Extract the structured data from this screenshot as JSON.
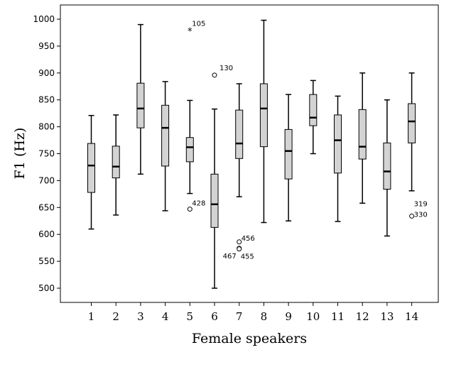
{
  "chart_data": {
    "type": "boxplot",
    "xlabel": "Female speakers",
    "ylabel": "F1 (Hz)",
    "ylim": [
      500,
      1000
    ],
    "yticks": [
      500,
      550,
      600,
      650,
      700,
      750,
      800,
      850,
      900,
      950,
      1000
    ],
    "grid": false,
    "colors": {
      "box_fill": "#d3d3d3",
      "stroke": "#000000",
      "background": "#ffffff"
    },
    "categories": [
      "1",
      "2",
      "3",
      "4",
      "5",
      "6",
      "7",
      "8",
      "9",
      "10",
      "11",
      "12",
      "13",
      "14"
    ],
    "boxes": [
      {
        "category": "1",
        "whisker_low": 610,
        "q1": 678,
        "median": 728,
        "q3": 769,
        "whisker_high": 821
      },
      {
        "category": "2",
        "whisker_low": 636,
        "q1": 705,
        "median": 726,
        "q3": 764,
        "whisker_high": 822
      },
      {
        "category": "3",
        "whisker_low": 712,
        "q1": 798,
        "median": 834,
        "q3": 881,
        "whisker_high": 990
      },
      {
        "category": "4",
        "whisker_low": 644,
        "q1": 727,
        "median": 798,
        "q3": 840,
        "whisker_high": 884
      },
      {
        "category": "5",
        "whisker_low": 676,
        "q1": 735,
        "median": 762,
        "q3": 780,
        "whisker_high": 849
      },
      {
        "category": "6",
        "whisker_low": 500,
        "q1": 613,
        "median": 656,
        "q3": 712,
        "whisker_high": 833
      },
      {
        "category": "7",
        "whisker_low": 670,
        "q1": 741,
        "median": 769,
        "q3": 831,
        "whisker_high": 880
      },
      {
        "category": "8",
        "whisker_low": 622,
        "q1": 763,
        "median": 834,
        "q3": 880,
        "whisker_high": 998
      },
      {
        "category": "9",
        "whisker_low": 625,
        "q1": 703,
        "median": 755,
        "q3": 795,
        "whisker_high": 860
      },
      {
        "category": "10",
        "whisker_low": 750,
        "q1": 802,
        "median": 817,
        "q3": 860,
        "whisker_high": 886
      },
      {
        "category": "11",
        "whisker_low": 624,
        "q1": 714,
        "median": 775,
        "q3": 822,
        "whisker_high": 857
      },
      {
        "category": "12",
        "whisker_low": 658,
        "q1": 740,
        "median": 763,
        "q3": 832,
        "whisker_high": 900
      },
      {
        "category": "13",
        "whisker_low": 597,
        "q1": 684,
        "median": 717,
        "q3": 770,
        "whisker_high": 850
      },
      {
        "category": "14",
        "whisker_low": 681,
        "q1": 770,
        "median": 810,
        "q3": 843,
        "whisker_high": 900
      }
    ],
    "outliers": [
      {
        "category": "5",
        "value": 978,
        "marker": "star",
        "label": "105"
      },
      {
        "category": "5",
        "value": 647,
        "marker": "circle",
        "label": "428"
      },
      {
        "category": "6",
        "value": 896,
        "marker": "circle",
        "label": "130"
      },
      {
        "category": "7",
        "value": 586,
        "marker": "circle",
        "label": "456"
      },
      {
        "category": "7",
        "value": 574,
        "marker": "circle",
        "label": "467"
      },
      {
        "category": "7",
        "value": 573,
        "marker": "circle",
        "label": "455"
      },
      {
        "category": "14",
        "value": 634,
        "marker": "circle",
        "label": "319"
      },
      {
        "category": "14",
        "value": 634,
        "marker": "circle",
        "label": "330"
      }
    ]
  }
}
